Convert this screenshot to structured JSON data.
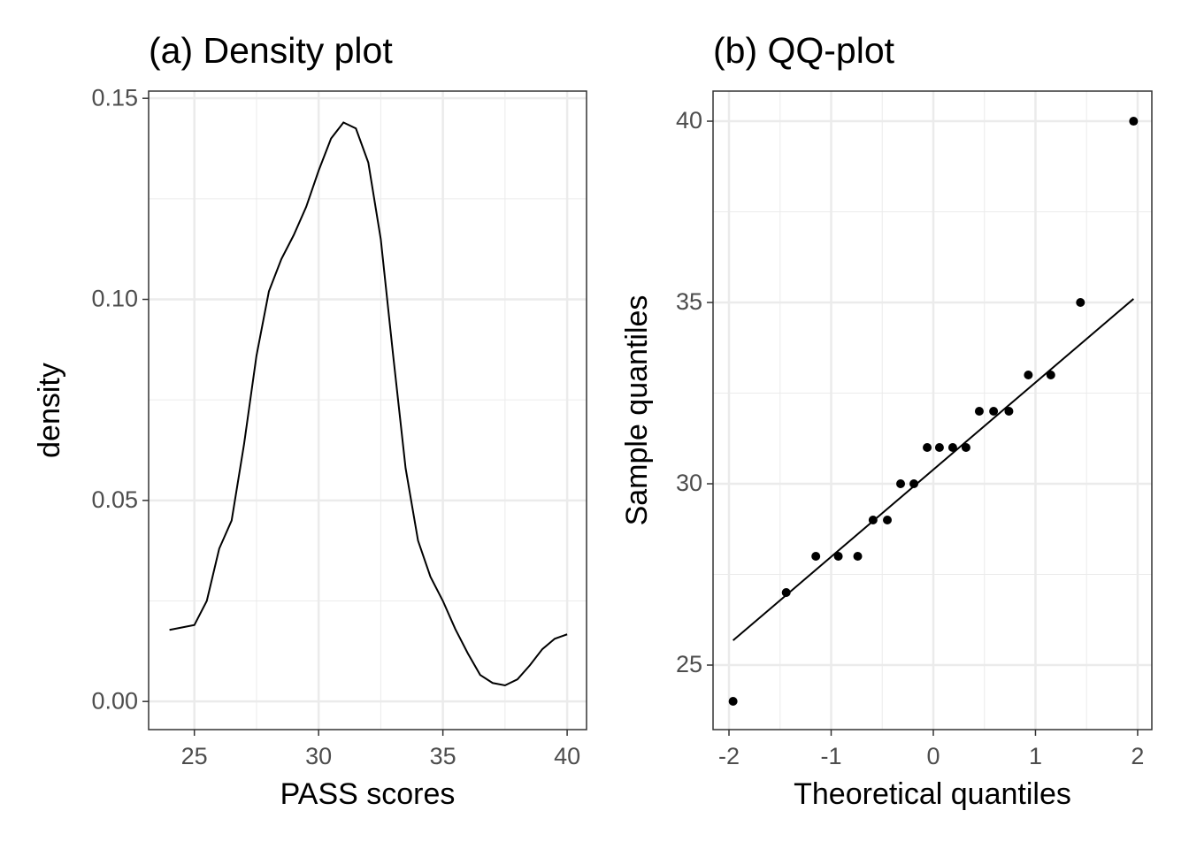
{
  "chart_data": [
    {
      "type": "line",
      "title": "(a) Density plot",
      "xlabel": "PASS scores",
      "ylabel": "density",
      "color": "#000000",
      "x": [
        24,
        25,
        25.5,
        26,
        26.5,
        27,
        27.5,
        28,
        28.5,
        29,
        29.5,
        30,
        30.5,
        31,
        31.5,
        32,
        32.5,
        33,
        33.5,
        34,
        34.5,
        35,
        35.5,
        36,
        36.5,
        37,
        37.5,
        38,
        38.5,
        39,
        39.5,
        40
      ],
      "values": [
        0.0178,
        0.019,
        0.025,
        0.038,
        0.045,
        0.064,
        0.086,
        0.102,
        0.11,
        0.116,
        0.123,
        0.132,
        0.14,
        0.144,
        0.1425,
        0.134,
        0.115,
        0.086,
        0.058,
        0.04,
        0.031,
        0.025,
        0.018,
        0.012,
        0.0066,
        0.0046,
        0.004,
        0.0055,
        0.009,
        0.013,
        0.0156,
        0.0167
      ],
      "xlim": [
        23.16,
        40.78
      ],
      "ylim": [
        -0.007,
        0.1518
      ],
      "xticks": [
        25,
        30,
        35,
        40
      ],
      "yticks": [
        {
          "value": 0,
          "label": "0.00"
        },
        {
          "value": 0.05,
          "label": "0.05"
        },
        {
          "value": 0.1,
          "label": "0.10"
        },
        {
          "value": 0.15,
          "label": "0.15"
        }
      ],
      "xminor": [
        27.5,
        32.5,
        37.5
      ],
      "yminor": [
        0.025,
        0.075,
        0.125
      ],
      "grid": true
    },
    {
      "type": "scatter",
      "title": "(b) QQ-plot",
      "xlabel": "Theoretical quantiles",
      "ylabel": "Sample quantiles",
      "color": "#000000",
      "x": [
        -1.96,
        -1.44,
        -1.15,
        -0.93,
        -0.74,
        -0.59,
        -0.45,
        -0.32,
        -0.19,
        -0.06,
        0.06,
        0.19,
        0.32,
        0.45,
        0.59,
        0.74,
        0.93,
        1.15,
        1.44,
        1.96
      ],
      "values": [
        24,
        27,
        28,
        28,
        28,
        29,
        29,
        30,
        30,
        31,
        31,
        31,
        31,
        32,
        32,
        32,
        33,
        33,
        35,
        40
      ],
      "line": {
        "x": [
          -1.96,
          1.96
        ],
        "values": [
          25.68,
          35.1
        ]
      },
      "xlim": [
        -2.156,
        2.139
      ],
      "ylim": [
        23.22,
        40.83
      ],
      "xticks": [
        -2,
        -1,
        0,
        1,
        2
      ],
      "yticks": [
        25,
        30,
        35,
        40
      ],
      "xminor": [
        -1.5,
        -0.5,
        0.5,
        1.5
      ],
      "yminor": [
        27.5,
        32.5,
        37.5
      ],
      "grid": true
    }
  ]
}
